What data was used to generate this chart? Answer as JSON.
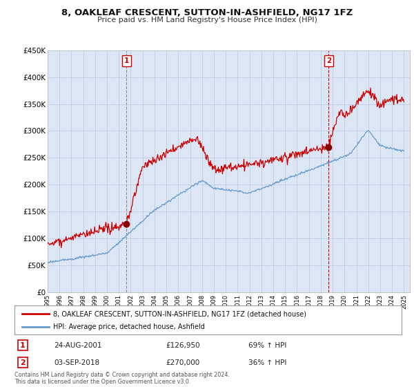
{
  "title": "8, OAKLEAF CRESCENT, SUTTON-IN-ASHFIELD, NG17 1FZ",
  "subtitle": "Price paid vs. HM Land Registry's House Price Index (HPI)",
  "ylim": [
    0,
    450000
  ],
  "yticks": [
    0,
    50000,
    100000,
    150000,
    200000,
    250000,
    300000,
    350000,
    400000,
    450000
  ],
  "ytick_labels": [
    "£0",
    "£50K",
    "£100K",
    "£150K",
    "£200K",
    "£250K",
    "£300K",
    "£350K",
    "£400K",
    "£450K"
  ],
  "background_color": "#ffffff",
  "plot_bg_color": "#dce6f4",
  "grid_color": "#b8c8e0",
  "sale1_date": 2001.65,
  "sale1_price": 126950,
  "sale1_label": "1",
  "sale2_date": 2018.67,
  "sale2_price": 270000,
  "sale2_label": "2",
  "legend_line1": "8, OAKLEAF CRESCENT, SUTTON-IN-ASHFIELD, NG17 1FZ (detached house)",
  "legend_line2": "HPI: Average price, detached house, Ashfield",
  "table_row1": [
    "1",
    "24-AUG-2001",
    "£126,950",
    "69% ↑ HPI"
  ],
  "table_row2": [
    "2",
    "03-SEP-2018",
    "£270,000",
    "36% ↑ HPI"
  ],
  "footer": "Contains HM Land Registry data © Crown copyright and database right 2024.\nThis data is licensed under the Open Government Licence v3.0.",
  "red_color": "#cc0000",
  "blue_color": "#6699cc",
  "marker_color": "#880000"
}
